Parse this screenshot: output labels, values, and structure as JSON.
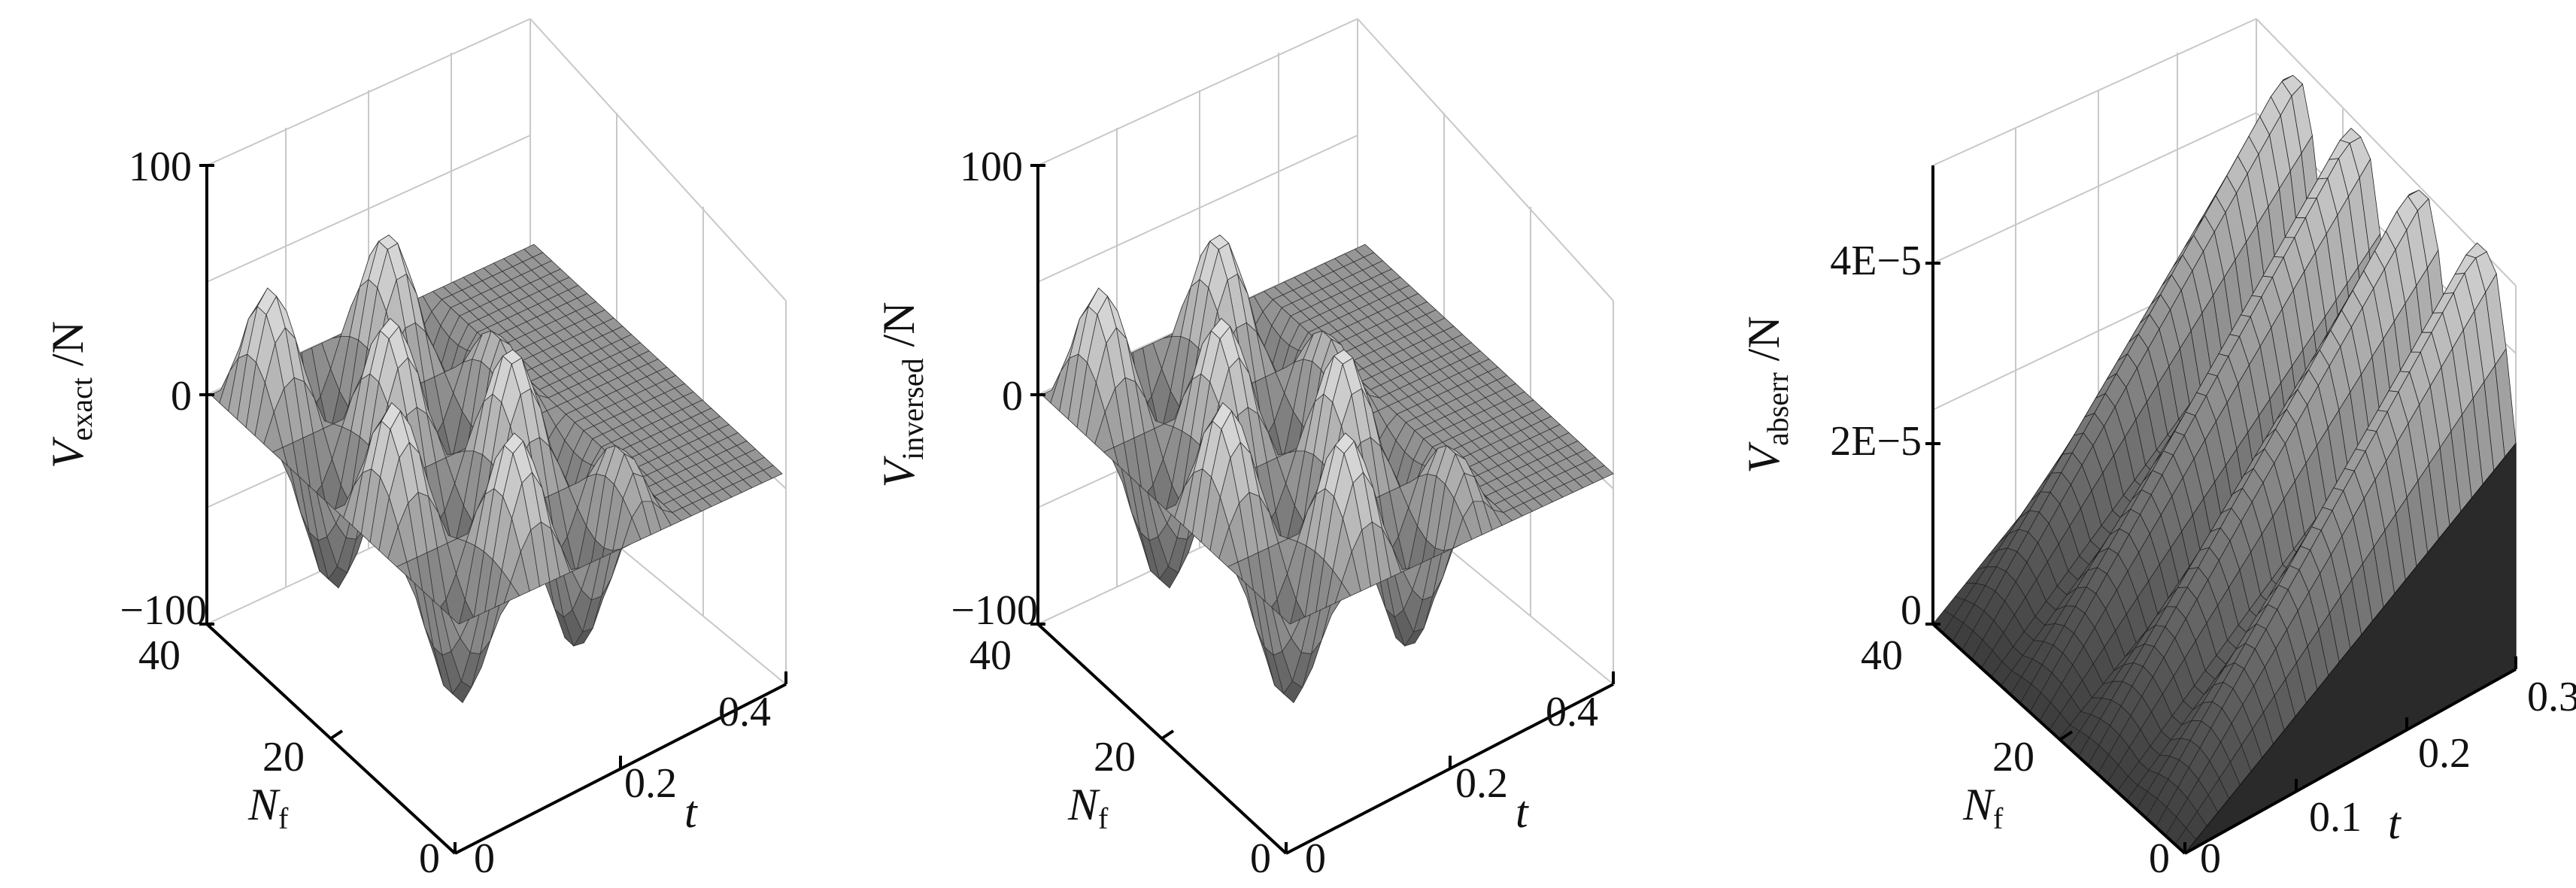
{
  "chart_data": [
    {
      "type": "surface",
      "zlabel": {
        "symbol": "V",
        "sub": "exact",
        "unit": " /N"
      },
      "xlabel": "t",
      "ylabel": {
        "symbol": "N",
        "sub": "f"
      },
      "zticks": [
        "100",
        "0",
        "−100"
      ],
      "zlim": [
        -100,
        100
      ],
      "xticks": [
        "0",
        "0.2",
        "0.4"
      ],
      "xlim": [
        0,
        0.4
      ],
      "yticks": [
        "0",
        "20",
        "40"
      ],
      "ylim": [
        0,
        40
      ],
      "grid": true,
      "shading": "faceted grey"
    },
    {
      "type": "surface",
      "zlabel": {
        "symbol": "V",
        "sub": "inversed",
        "unit": " /N"
      },
      "xlabel": "t",
      "ylabel": {
        "symbol": "N",
        "sub": "f"
      },
      "zticks": [
        "100",
        "0",
        "−100"
      ],
      "zlim": [
        -100,
        100
      ],
      "xticks": [
        "0",
        "0.2",
        "0.4"
      ],
      "xlim": [
        0,
        0.4
      ],
      "yticks": [
        "0",
        "20",
        "40"
      ],
      "ylim": [
        0,
        40
      ],
      "grid": true,
      "shading": "faceted grey"
    },
    {
      "type": "surface",
      "zlabel": {
        "symbol": "V",
        "sub": "abserr",
        "unit": " /N"
      },
      "xlabel": "t",
      "ylabel": {
        "symbol": "N",
        "sub": "f"
      },
      "zticks": [
        "4E−5",
        "2E−5",
        "0"
      ],
      "zlim": [
        0,
        5e-05
      ],
      "xticks": [
        "0",
        "0.1",
        "0.2",
        "0.3"
      ],
      "xlim": [
        0,
        0.3
      ],
      "yticks": [
        "0",
        "20",
        "40"
      ],
      "ylim": [
        0,
        40
      ],
      "grid": true,
      "shading": "faceted dark grey"
    }
  ]
}
